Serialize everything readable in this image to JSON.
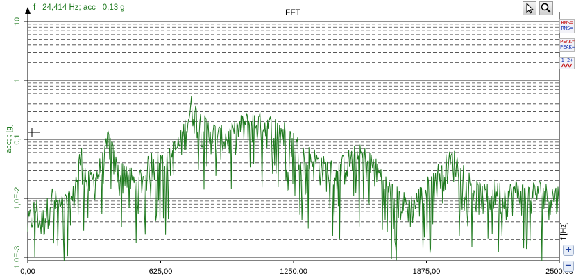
{
  "cursor_readout": "f= 24,414 Hz; acc= 0,13 g",
  "chart_data": {
    "type": "line",
    "title": "FFT",
    "xlabel": "f [Hz]",
    "ylabel": "acc; ; [g]",
    "y_scale": "log",
    "xlim": [
      0,
      2500
    ],
    "ylim": [
      0.0007,
      12
    ],
    "x_ticks": [
      "0,00",
      "625,00",
      "1250,00",
      "1875,00",
      "2500,00"
    ],
    "x_tick_values": [
      0,
      625,
      1250,
      1875,
      2500
    ],
    "y_ticks": [
      "10",
      "1",
      "0,1",
      "1,0E-2",
      "1,0E-3"
    ],
    "y_tick_values": [
      10,
      1,
      0.1,
      0.01,
      0.001
    ],
    "grid": "horizontal dashed lines at log decade subdivisions",
    "series": [
      {
        "color": "#1f7a1f",
        "envelope": {
          "x": [
            0,
            40,
            60,
            85,
            110,
            150,
            210,
            250,
            280,
            320,
            360,
            380,
            400,
            430,
            460,
            500,
            540,
            580,
            620,
            650,
            680,
            700,
            720,
            750,
            770,
            800,
            830,
            860,
            900,
            950,
            1000,
            1050,
            1100,
            1150,
            1200,
            1250,
            1300,
            1350,
            1400,
            1450,
            1500,
            1550,
            1600,
            1650,
            1700,
            1750,
            1800,
            1850,
            1900,
            1950,
            2000,
            2050,
            2100,
            2150,
            2200,
            2250,
            2300,
            2350,
            2400,
            2450,
            2500
          ],
          "y": [
            0.004,
            0.008,
            0.004,
            0.006,
            0.012,
            0.008,
            0.01,
            0.06,
            0.02,
            0.025,
            0.05,
            0.12,
            0.06,
            0.025,
            0.035,
            0.02,
            0.025,
            0.045,
            0.05,
            0.04,
            0.06,
            0.08,
            0.1,
            0.22,
            0.4,
            0.25,
            0.18,
            0.15,
            0.12,
            0.12,
            0.18,
            0.22,
            0.2,
            0.18,
            0.15,
            0.1,
            0.06,
            0.05,
            0.035,
            0.03,
            0.045,
            0.06,
            0.05,
            0.03,
            0.015,
            0.01,
            0.008,
            0.012,
            0.02,
            0.035,
            0.05,
            0.03,
            0.015,
            0.012,
            0.015,
            0.012,
            0.015,
            0.012,
            0.015,
            0.012,
            0.012
          ]
        }
      }
    ]
  },
  "icons": {
    "pointer": "cursor-arrow-icon",
    "zoom": "magnifier-icon"
  },
  "side_labels": {
    "rms": "RMS=",
    "peak": "PEAK=",
    "stats": "1 2+"
  },
  "zoom_in": "+",
  "zoom_out": "−"
}
